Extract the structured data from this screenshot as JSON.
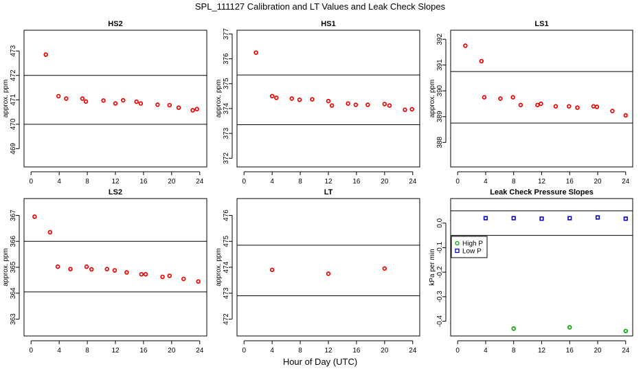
{
  "figure": {
    "title": "SPL_111127  Calibration and LT Values and Leak Check Slopes",
    "xlabel": "Hour of Day (UTC)"
  },
  "chart_data": [
    {
      "type": "scatter",
      "title": "HS2",
      "ylabel": "approx. ppm",
      "xlim": [
        -1,
        25
      ],
      "ylim": [
        468.25,
        473.85
      ],
      "xticks": [
        0,
        4,
        8,
        12,
        16,
        20,
        24
      ],
      "yticks": [
        469,
        470,
        471,
        472,
        473
      ],
      "hlines": [
        472,
        470
      ],
      "series": [
        {
          "name": "HS2",
          "color": "#ee0000",
          "marker": "circle",
          "x": [
            2.1,
            3.9,
            5.0,
            7.3,
            7.8,
            10.3,
            12.0,
            13.1,
            15.0,
            15.6,
            18.0,
            19.7,
            21.0,
            23.0,
            23.6
          ],
          "y": [
            472.85,
            471.15,
            471.05,
            471.05,
            470.93,
            470.97,
            470.85,
            470.98,
            470.92,
            470.85,
            470.8,
            470.78,
            470.68,
            470.57,
            470.62
          ]
        }
      ]
    },
    {
      "type": "scatter",
      "title": "HS1",
      "ylabel": "approx. ppm",
      "xlim": [
        -1,
        25
      ],
      "ylim": [
        371.65,
        377.15
      ],
      "xticks": [
        0,
        4,
        8,
        12,
        16,
        20,
        24
      ],
      "yticks": [
        372,
        373,
        374,
        375,
        376,
        377
      ],
      "hlines": [
        375.35,
        373.35
      ],
      "series": [
        {
          "name": "HS1",
          "color": "#ee0000",
          "marker": "circle",
          "x": [
            1.7,
            4.0,
            4.6,
            6.8,
            7.9,
            9.7,
            12.0,
            12.5,
            14.8,
            15.9,
            17.6,
            20.0,
            20.7,
            22.9,
            23.9
          ],
          "y": [
            376.25,
            374.5,
            374.43,
            374.4,
            374.35,
            374.37,
            374.3,
            374.12,
            374.2,
            374.15,
            374.15,
            374.18,
            374.12,
            373.95,
            373.97
          ]
        }
      ]
    },
    {
      "type": "scatter",
      "title": "LS1",
      "ylabel": "approx. ppm",
      "xlim": [
        -1,
        25
      ],
      "ylim": [
        387.05,
        392.35
      ],
      "xticks": [
        0,
        4,
        8,
        12,
        16,
        20,
        24
      ],
      "yticks": [
        388,
        389,
        390,
        391,
        392
      ],
      "hlines": [
        390.75,
        388.75
      ],
      "series": [
        {
          "name": "LS1",
          "color": "#ee0000",
          "marker": "circle",
          "x": [
            1.1,
            3.4,
            3.8,
            6.1,
            7.9,
            9.0,
            11.4,
            11.9,
            14.0,
            15.9,
            17.1,
            19.4,
            19.9,
            22.1,
            24.0
          ],
          "y": [
            391.75,
            391.15,
            389.75,
            389.7,
            389.75,
            389.45,
            389.45,
            389.5,
            389.4,
            389.4,
            389.35,
            389.4,
            389.38,
            389.22,
            389.05
          ]
        }
      ]
    },
    {
      "type": "scatter",
      "title": "LS2",
      "ylabel": "approx. ppm",
      "xlim": [
        -1,
        25
      ],
      "ylim": [
        362.35,
        367.65
      ],
      "xticks": [
        0,
        4,
        8,
        12,
        16,
        20,
        24
      ],
      "yticks": [
        363,
        364,
        365,
        366,
        367
      ],
      "hlines": [
        366,
        364.05
      ],
      "series": [
        {
          "name": "LS2",
          "color": "#ee0000",
          "marker": "circle",
          "x": [
            0.5,
            2.7,
            3.8,
            5.6,
            7.9,
            8.6,
            10.8,
            11.9,
            13.6,
            15.7,
            16.3,
            18.7,
            19.7,
            21.7,
            23.8
          ],
          "y": [
            366.95,
            366.35,
            365.02,
            364.93,
            365.02,
            364.92,
            364.93,
            364.88,
            364.8,
            364.73,
            364.73,
            364.63,
            364.67,
            364.55,
            364.45
          ]
        }
      ]
    },
    {
      "type": "scatter",
      "title": "LT",
      "ylabel": "approx. ppm",
      "xlim": [
        -1,
        25
      ],
      "ylim": [
        471.35,
        476.65
      ],
      "xticks": [
        0,
        4,
        8,
        12,
        16,
        20,
        24
      ],
      "yticks": [
        472,
        473,
        474,
        475,
        476
      ],
      "hlines": [
        474.85,
        472.9
      ],
      "series": [
        {
          "name": "LT",
          "color": "#ee0000",
          "marker": "circle",
          "x": [
            4.0,
            12.0,
            20.0
          ],
          "y": [
            473.9,
            473.75,
            473.95
          ]
        }
      ]
    },
    {
      "type": "scatter",
      "title": "Leak Check Pressure Slopes",
      "ylabel": "kPa per min",
      "xlim": [
        -1,
        25
      ],
      "ylim": [
        -0.46,
        0.1
      ],
      "xticks": [
        0,
        4,
        8,
        12,
        16,
        20,
        24
      ],
      "yticks": [
        0.0,
        -0.1,
        -0.2,
        -0.3,
        -0.4
      ],
      "ytick_labels": [
        "0.0",
        "-0.1",
        "-0.2",
        "-0.3",
        "-0.4"
      ],
      "hlines": [
        0.05,
        -0.05
      ],
      "legend": {
        "position": "left",
        "entries": [
          "High P",
          "Low P"
        ]
      },
      "series": [
        {
          "name": "High P",
          "color": "#00aa00",
          "marker": "circle",
          "x": [
            8.0,
            16.0,
            24.0
          ],
          "y": [
            -0.43,
            -0.425,
            -0.44
          ]
        },
        {
          "name": "Low P",
          "color": "#0000cc",
          "marker": "circle",
          "x": [
            4.0,
            8.0,
            12.0,
            16.0,
            20.0,
            24.0
          ],
          "y": [
            0.02,
            0.02,
            0.018,
            0.02,
            0.023,
            0.018
          ]
        }
      ]
    }
  ]
}
